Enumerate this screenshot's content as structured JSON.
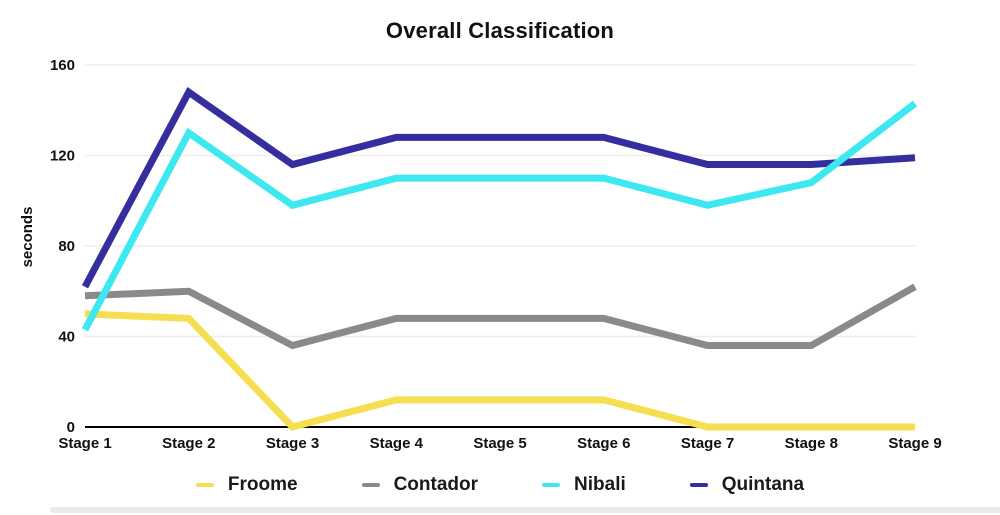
{
  "title": "Overall Classification",
  "ylabel": "seconds",
  "chart_data": {
    "type": "line",
    "title": "Overall Classification",
    "xlabel": "",
    "ylabel": "seconds",
    "categories": [
      "Stage 1",
      "Stage 2",
      "Stage 3",
      "Stage 4",
      "Stage 5",
      "Stage 6",
      "Stage 7",
      "Stage 8",
      "Stage 9"
    ],
    "series": [
      {
        "name": "Froome",
        "color": "#F5DE4F",
        "values": [
          50,
          48,
          0,
          12,
          12,
          12,
          0,
          0,
          0
        ]
      },
      {
        "name": "Contador",
        "color": "#8A8A8A",
        "values": [
          58,
          60,
          36,
          48,
          48,
          48,
          36,
          36,
          62
        ]
      },
      {
        "name": "Nibali",
        "color": "#3DE8F0",
        "values": [
          43,
          130,
          98,
          110,
          110,
          110,
          98,
          108,
          143
        ]
      },
      {
        "name": "Quintana",
        "color": "#342E9E",
        "values": [
          62,
          148,
          116,
          128,
          128,
          128,
          116,
          116,
          119
        ]
      }
    ],
    "draw_order": [
      "Froome",
      "Contador",
      "Quintana",
      "Nibali"
    ],
    "ylim": [
      0,
      160
    ],
    "yticks": [
      0,
      40,
      80,
      120,
      160
    ],
    "grid": true,
    "legend_position": "bottom",
    "colors": {
      "axis": "#000000",
      "gridline": "#ededed",
      "tick_text": "#111111",
      "background": "#ffffff"
    }
  }
}
